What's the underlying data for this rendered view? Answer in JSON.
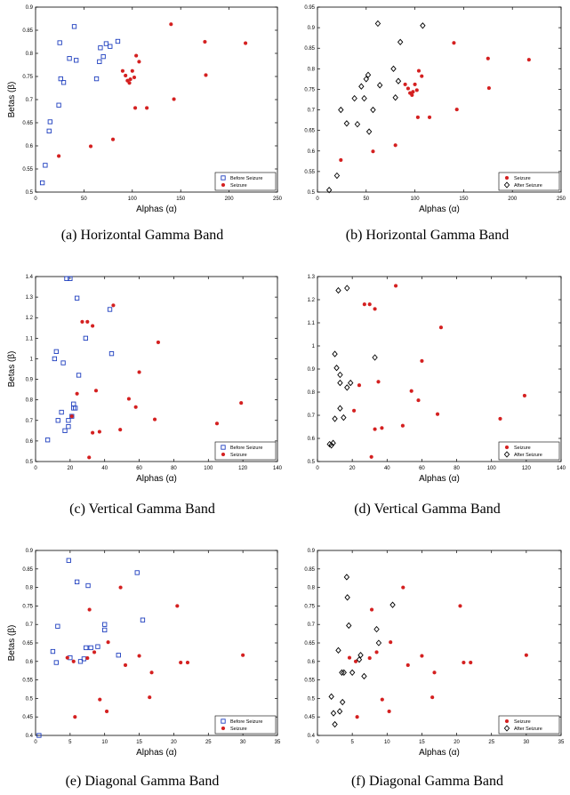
{
  "chart_data": [
    {
      "type": "scatter",
      "caption": "(a)  Horizontal Gamma Band",
      "xlabel": "Alphas (α)",
      "ylabel": "Betas (β)",
      "xlim": [
        0,
        250
      ],
      "ylim": [
        0.5,
        0.9
      ],
      "xticks": [
        0,
        50,
        100,
        150,
        200,
        250
      ],
      "yticks": [
        0.5,
        0.55,
        0.6,
        0.65,
        0.7,
        0.75,
        0.8,
        0.85,
        0.9
      ],
      "legend_position": "bottom-right",
      "series": [
        {
          "name": "Before Seizure",
          "marker": "square",
          "color": "#1f3fbf",
          "points": [
            [
              7,
              0.52
            ],
            [
              10,
              0.558
            ],
            [
              14,
              0.632
            ],
            [
              15,
              0.652
            ],
            [
              24,
              0.688
            ],
            [
              25,
              0.823
            ],
            [
              26,
              0.745
            ],
            [
              29,
              0.737
            ],
            [
              35,
              0.789
            ],
            [
              40,
              0.858
            ],
            [
              42,
              0.785
            ],
            [
              63,
              0.745
            ],
            [
              66,
              0.782
            ],
            [
              67,
              0.812
            ],
            [
              70,
              0.793
            ],
            [
              73,
              0.821
            ],
            [
              77,
              0.815
            ],
            [
              85,
              0.826
            ]
          ]
        },
        {
          "name": "Seizure",
          "marker": "dot",
          "color": "#d42020",
          "points": [
            [
              24,
              0.578
            ],
            [
              57,
              0.599
            ],
            [
              80,
              0.614
            ],
            [
              90,
              0.762
            ],
            [
              93,
              0.752
            ],
            [
              95,
              0.741
            ],
            [
              97,
              0.736
            ],
            [
              98,
              0.744
            ],
            [
              100,
              0.762
            ],
            [
              102,
              0.748
            ],
            [
              103,
              0.682
            ],
            [
              104,
              0.795
            ],
            [
              107,
              0.782
            ],
            [
              115,
              0.682
            ],
            [
              140,
              0.863
            ],
            [
              143,
              0.701
            ],
            [
              175,
              0.825
            ],
            [
              176,
              0.753
            ],
            [
              217,
              0.822
            ]
          ]
        }
      ]
    },
    {
      "type": "scatter",
      "caption": "(b)  Horizontal Gamma Band",
      "xlabel": "Alphas (α)",
      "ylabel": "",
      "xlim": [
        0,
        250
      ],
      "ylim": [
        0.5,
        0.95
      ],
      "xticks": [
        0,
        50,
        100,
        150,
        200,
        250
      ],
      "yticks": [
        0.5,
        0.55,
        0.6,
        0.65,
        0.7,
        0.75,
        0.8,
        0.85,
        0.9,
        0.95
      ],
      "legend_position": "bottom-right",
      "series": [
        {
          "name": "Seizure",
          "marker": "dot",
          "color": "#d42020",
          "points": [
            [
              24,
              0.578
            ],
            [
              57,
              0.599
            ],
            [
              80,
              0.614
            ],
            [
              90,
              0.762
            ],
            [
              93,
              0.752
            ],
            [
              95,
              0.741
            ],
            [
              97,
              0.736
            ],
            [
              98,
              0.744
            ],
            [
              100,
              0.762
            ],
            [
              102,
              0.748
            ],
            [
              103,
              0.682
            ],
            [
              104,
              0.795
            ],
            [
              107,
              0.782
            ],
            [
              115,
              0.682
            ],
            [
              140,
              0.863
            ],
            [
              143,
              0.701
            ],
            [
              175,
              0.825
            ],
            [
              176,
              0.753
            ],
            [
              217,
              0.822
            ]
          ]
        },
        {
          "name": "After Seizure",
          "marker": "diamond",
          "color": "#000000",
          "points": [
            [
              12,
              0.505
            ],
            [
              20,
              0.54
            ],
            [
              24,
              0.7
            ],
            [
              30,
              0.667
            ],
            [
              38,
              0.728
            ],
            [
              41,
              0.665
            ],
            [
              45,
              0.757
            ],
            [
              48,
              0.728
            ],
            [
              50,
              0.775
            ],
            [
              52,
              0.785
            ],
            [
              53,
              0.647
            ],
            [
              57,
              0.7
            ],
            [
              62,
              0.91
            ],
            [
              64,
              0.76
            ],
            [
              78,
              0.8
            ],
            [
              80,
              0.73
            ],
            [
              83,
              0.77
            ],
            [
              85,
              0.865
            ],
            [
              108,
              0.905
            ]
          ]
        }
      ]
    },
    {
      "type": "scatter",
      "caption": "(c)  Vertical Gamma Band",
      "xlabel": "Alphas (α)",
      "ylabel": "Betas (β)",
      "xlim": [
        0,
        140
      ],
      "ylim": [
        0.5,
        1.4
      ],
      "xticks": [
        0,
        20,
        40,
        60,
        80,
        100,
        120,
        140
      ],
      "yticks": [
        0.5,
        0.6,
        0.7,
        0.8,
        0.9,
        1,
        1.1,
        1.2,
        1.3,
        1.4
      ],
      "legend_position": "bottom-right",
      "series": [
        {
          "name": "Before Seizure",
          "marker": "square",
          "color": "#1f3fbf",
          "points": [
            [
              7,
              0.605
            ],
            [
              11,
              1.0
            ],
            [
              12,
              1.035
            ],
            [
              13,
              0.7
            ],
            [
              15,
              0.74
            ],
            [
              16,
              0.98
            ],
            [
              17,
              0.65
            ],
            [
              18,
              1.39
            ],
            [
              19,
              0.67
            ],
            [
              19,
              0.7
            ],
            [
              20,
              1.39
            ],
            [
              21,
              0.72
            ],
            [
              22,
              0.76
            ],
            [
              22,
              0.78
            ],
            [
              23,
              0.76
            ],
            [
              24,
              1.295
            ],
            [
              25,
              0.92
            ],
            [
              29,
              1.1
            ],
            [
              43,
              1.24
            ],
            [
              44,
              1.025
            ]
          ]
        },
        {
          "name": "Seizure",
          "marker": "dot",
          "color": "#d42020",
          "points": [
            [
              21,
              0.72
            ],
            [
              24,
              0.83
            ],
            [
              27,
              1.18
            ],
            [
              30,
              1.18
            ],
            [
              31,
              0.52
            ],
            [
              33,
              0.64
            ],
            [
              33,
              1.16
            ],
            [
              35,
              0.845
            ],
            [
              37,
              0.645
            ],
            [
              45,
              1.26
            ],
            [
              49,
              0.655
            ],
            [
              54,
              0.805
            ],
            [
              58,
              0.765
            ],
            [
              60,
              0.935
            ],
            [
              69,
              0.705
            ],
            [
              71,
              1.08
            ],
            [
              105,
              0.685
            ],
            [
              119,
              0.785
            ]
          ]
        }
      ]
    },
    {
      "type": "scatter",
      "caption": "(d)  Vertical Gamma Band",
      "xlabel": "Alphas (α)",
      "ylabel": "",
      "xlim": [
        0,
        140
      ],
      "ylim": [
        0.5,
        1.3
      ],
      "xticks": [
        0,
        20,
        40,
        60,
        80,
        100,
        120,
        140
      ],
      "yticks": [
        0.5,
        0.6,
        0.7,
        0.8,
        0.9,
        1,
        1.1,
        1.2,
        1.3
      ],
      "legend_position": "bottom-right",
      "series": [
        {
          "name": "Seizure",
          "marker": "dot",
          "color": "#d42020",
          "points": [
            [
              21,
              0.72
            ],
            [
              24,
              0.83
            ],
            [
              27,
              1.18
            ],
            [
              30,
              1.18
            ],
            [
              31,
              0.52
            ],
            [
              33,
              0.64
            ],
            [
              33,
              1.16
            ],
            [
              35,
              0.845
            ],
            [
              37,
              0.645
            ],
            [
              45,
              1.26
            ],
            [
              49,
              0.655
            ],
            [
              54,
              0.805
            ],
            [
              58,
              0.765
            ],
            [
              60,
              0.935
            ],
            [
              69,
              0.705
            ],
            [
              71,
              1.08
            ],
            [
              105,
              0.685
            ],
            [
              119,
              0.785
            ]
          ]
        },
        {
          "name": "After Seizure",
          "marker": "diamond",
          "color": "#000000",
          "points": [
            [
              7,
              0.575
            ],
            [
              8,
              0.57
            ],
            [
              9,
              0.58
            ],
            [
              10,
              0.685
            ],
            [
              10,
              0.965
            ],
            [
              11,
              0.905
            ],
            [
              12,
              1.24
            ],
            [
              13,
              0.73
            ],
            [
              13,
              0.875
            ],
            [
              13,
              0.84
            ],
            [
              15,
              0.69
            ],
            [
              17,
              1.25
            ],
            [
              17,
              0.82
            ],
            [
              19,
              0.84
            ],
            [
              33,
              0.95
            ]
          ]
        }
      ]
    },
    {
      "type": "scatter",
      "caption": "(e)  Diagonal Gamma Band",
      "xlabel": "Alphas (α)",
      "ylabel": "Betas (β)",
      "xlim": [
        0,
        35
      ],
      "ylim": [
        0.4,
        0.9
      ],
      "xticks": [
        0,
        5,
        10,
        15,
        20,
        25,
        30,
        35
      ],
      "yticks": [
        0.4,
        0.45,
        0.5,
        0.55,
        0.6,
        0.65,
        0.7,
        0.75,
        0.8,
        0.85,
        0.9
      ],
      "legend_position": "bottom-right",
      "series": [
        {
          "name": "Before Seizure",
          "marker": "square",
          "color": "#1f3fbf",
          "points": [
            [
              0.5,
              0.4
            ],
            [
              2.5,
              0.627
            ],
            [
              3,
              0.597
            ],
            [
              3.2,
              0.695
            ],
            [
              4.8,
              0.873
            ],
            [
              5,
              0.61
            ],
            [
              6,
              0.815
            ],
            [
              6.5,
              0.6
            ],
            [
              7,
              0.607
            ],
            [
              7.3,
              0.637
            ],
            [
              7.6,
              0.805
            ],
            [
              8,
              0.637
            ],
            [
              9,
              0.64
            ],
            [
              10,
              0.7
            ],
            [
              10,
              0.685
            ],
            [
              12,
              0.617
            ],
            [
              14.7,
              0.84
            ],
            [
              15.5,
              0.712
            ]
          ]
        },
        {
          "name": "Seizure",
          "marker": "dot",
          "color": "#d42020",
          "points": [
            [
              4.6,
              0.61
            ],
            [
              5.5,
              0.6
            ],
            [
              5.7,
              0.45
            ],
            [
              7.5,
              0.609
            ],
            [
              7.8,
              0.74
            ],
            [
              8.5,
              0.625
            ],
            [
              9.3,
              0.497
            ],
            [
              10.3,
              0.465
            ],
            [
              10.5,
              0.652
            ],
            [
              12.3,
              0.8
            ],
            [
              13,
              0.59
            ],
            [
              15,
              0.615
            ],
            [
              16.5,
              0.503
            ],
            [
              16.8,
              0.57
            ],
            [
              20.5,
              0.75
            ],
            [
              21,
              0.597
            ],
            [
              22,
              0.597
            ],
            [
              30,
              0.617
            ]
          ]
        }
      ]
    },
    {
      "type": "scatter",
      "caption": "(f)  Diagonal Gamma Band",
      "xlabel": "Alphas (α)",
      "ylabel": "",
      "xlim": [
        0,
        35
      ],
      "ylim": [
        0.4,
        0.9
      ],
      "xticks": [
        0,
        5,
        10,
        15,
        20,
        25,
        30,
        35
      ],
      "yticks": [
        0.4,
        0.45,
        0.5,
        0.55,
        0.6,
        0.65,
        0.7,
        0.75,
        0.8,
        0.85,
        0.9
      ],
      "legend_position": "bottom-right",
      "series": [
        {
          "name": "Seizure",
          "marker": "dot",
          "color": "#d42020",
          "points": [
            [
              4.6,
              0.61
            ],
            [
              5.5,
              0.6
            ],
            [
              5.7,
              0.45
            ],
            [
              7.5,
              0.609
            ],
            [
              7.8,
              0.74
            ],
            [
              8.5,
              0.625
            ],
            [
              9.3,
              0.497
            ],
            [
              10.3,
              0.465
            ],
            [
              10.5,
              0.652
            ],
            [
              12.3,
              0.8
            ],
            [
              13,
              0.59
            ],
            [
              15,
              0.615
            ],
            [
              16.5,
              0.503
            ],
            [
              16.8,
              0.57
            ],
            [
              20.5,
              0.75
            ],
            [
              21,
              0.597
            ],
            [
              22,
              0.597
            ],
            [
              30,
              0.617
            ]
          ]
        },
        {
          "name": "After Seizure",
          "marker": "diamond",
          "color": "#000000",
          "points": [
            [
              2,
              0.505
            ],
            [
              2.3,
              0.46
            ],
            [
              2.5,
              0.43
            ],
            [
              3,
              0.63
            ],
            [
              3.2,
              0.465
            ],
            [
              3.5,
              0.57
            ],
            [
              3.6,
              0.49
            ],
            [
              3.8,
              0.57
            ],
            [
              4.2,
              0.828
            ],
            [
              4.3,
              0.773
            ],
            [
              4.5,
              0.697
            ],
            [
              5,
              0.57
            ],
            [
              6,
              0.605
            ],
            [
              6.2,
              0.617
            ],
            [
              6.7,
              0.56
            ],
            [
              8.5,
              0.687
            ],
            [
              8.8,
              0.65
            ],
            [
              10.8,
              0.753
            ]
          ]
        }
      ]
    }
  ]
}
